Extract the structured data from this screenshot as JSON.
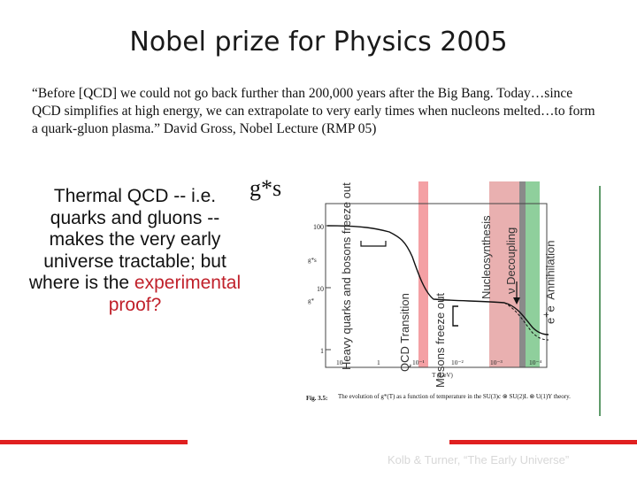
{
  "slide": {
    "title": "Nobel prize for Physics 2005",
    "quote": "“Before [QCD] we could not go back further than 200,000 years after the Big Bang. Today…since QCD simplifies at high energy, we can extrapolate to very early times when nucleons melted…to form a quark-gluon plasma.” David Gross, Nobel Lecture (RMP 05)",
    "left_text": "Thermal QCD -- i.e. quarks and gluons -- makes the very early universe tractable; but where is the",
    "left_text_red": "experimental proof?",
    "gstar_label": "g*s",
    "credit": "Kolb & Turner, “The Early Universe”"
  },
  "figure": {
    "bands": [
      {
        "label": "QCD Transition",
        "color": "#f4a0a4"
      },
      {
        "label": "Nucleosynthesis",
        "color": "#e9a7a7"
      },
      {
        "label": "Decoupling",
        "color": "#8a8a8a"
      },
      {
        "label": "e+e- Annihilation",
        "color": "#8fcf9c"
      }
    ],
    "labels": {
      "heavy": "Heavy quarks and bosons freeze out",
      "mesons": "Mesons freeze out",
      "nu_symbol": "ν",
      "decoupling": "Decoupling",
      "ann_prefix": "e",
      "ann_sup1": "+",
      "ann_mid": "e",
      "ann_sup2": "-",
      "ann_word": " Annihilation"
    },
    "axis": {
      "y_label_top": "g*s",
      "y_label": "g*",
      "y_ticks": [
        "100",
        "10",
        "1"
      ],
      "x_ticks": [
        "10",
        "1",
        "10⁻¹",
        "10⁻²",
        "10⁻³",
        "10⁻⁴"
      ],
      "x_label": "T (GeV)"
    },
    "caption_bold": "Fig. 3.5:",
    "caption_rest": "The evolution of g*(T) as a function of temperature in the SU(3)c ⊗ SU(2)L ⊗ U(1)Y theory."
  }
}
